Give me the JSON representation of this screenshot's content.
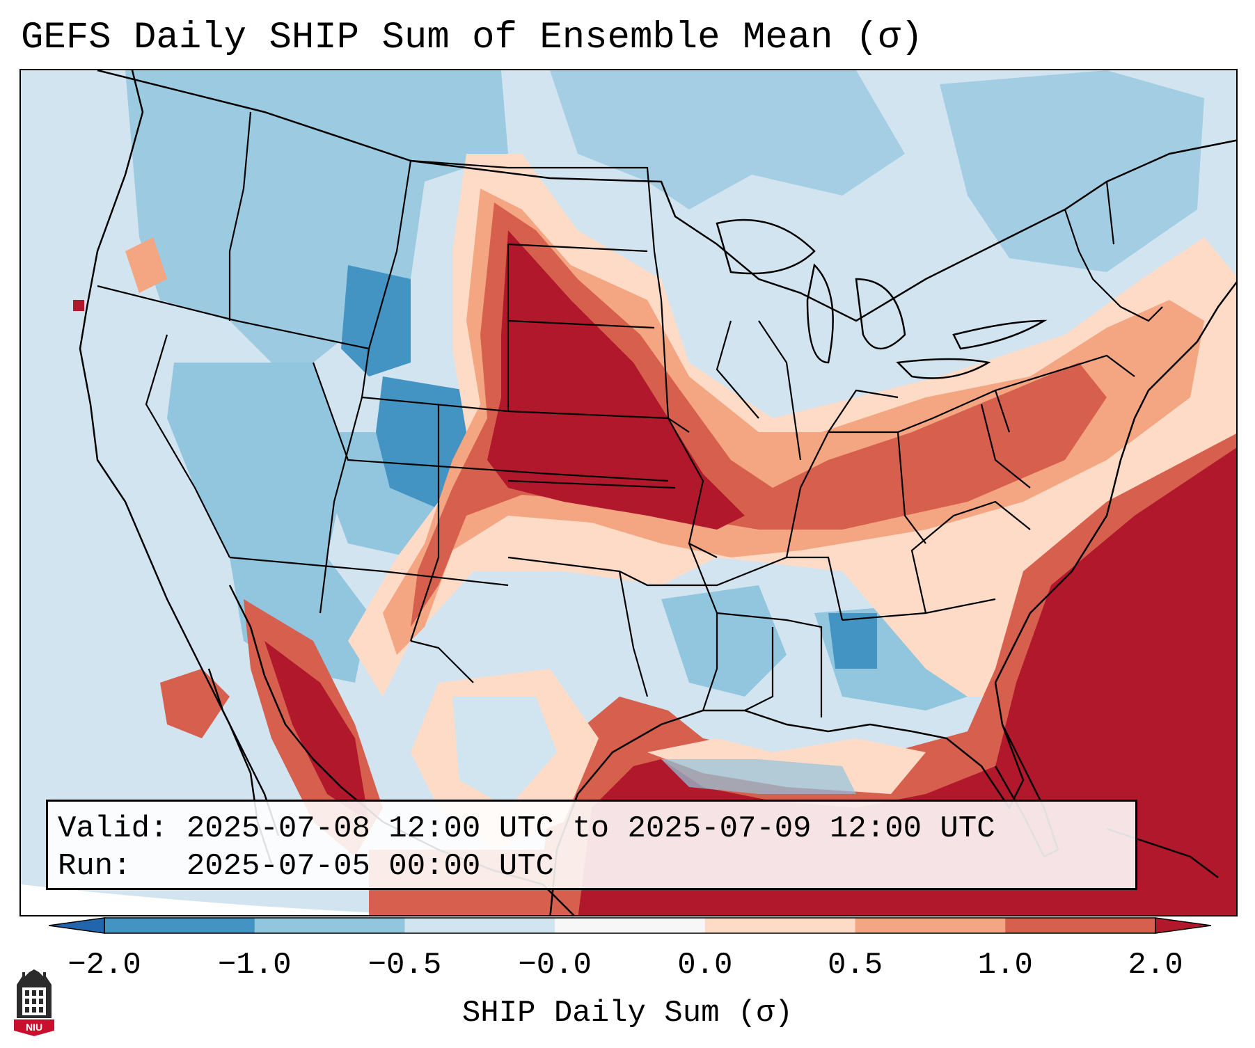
{
  "header": {
    "title": "GEFS Daily SHIP Sum of Ensemble Mean (σ)"
  },
  "map": {
    "region": "Continental United States",
    "projection": "Lambert Conformal",
    "features": [
      "state borders",
      "coastlines",
      "Great Lakes"
    ]
  },
  "info": {
    "valid_label": "Valid:",
    "valid_value": "2025-07-08 12:00 UTC to 2025-07-09 12:00 UTC",
    "run_label": "Run:",
    "run_value": "2025-07-05 00:00 UTC"
  },
  "colorbar": {
    "label": "SHIP Daily Sum (σ)",
    "ticks": [
      "−2.0",
      "−1.0",
      "−0.5",
      "−0.0",
      "0.0",
      "0.5",
      "1.0",
      "2.0"
    ],
    "bins": [
      {
        "from": -2.0,
        "to": -1.0,
        "color": "#4393c3"
      },
      {
        "from": -1.0,
        "to": -0.5,
        "color": "#92c5de"
      },
      {
        "from": -0.5,
        "to": -0.0,
        "color": "#d1e5f0"
      },
      {
        "from": -0.0,
        "to": 0.0,
        "color": "#f7f7f7"
      },
      {
        "from": 0.0,
        "to": 0.5,
        "color": "#fddbc7"
      },
      {
        "from": 0.5,
        "to": 1.0,
        "color": "#f4a582"
      },
      {
        "from": 1.0,
        "to": 2.0,
        "color": "#d6604d"
      }
    ],
    "under_color": "#2166ac",
    "over_color": "#b2182b"
  },
  "logo": {
    "text": "NIU"
  }
}
